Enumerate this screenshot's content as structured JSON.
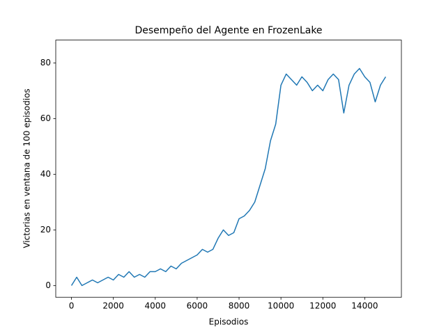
{
  "chart_data": {
    "type": "line",
    "title": "Desempeño del Agente en FrozenLake",
    "x_label": "Episodios",
    "y_label": "Victorias en ventana de 100 episodios",
    "x": [
      0,
      250,
      500,
      750,
      1000,
      1250,
      1500,
      1750,
      2000,
      2250,
      2500,
      2750,
      3000,
      3250,
      3500,
      3750,
      4000,
      4250,
      4500,
      4750,
      5000,
      5250,
      5500,
      5750,
      6000,
      6250,
      6500,
      6750,
      7000,
      7250,
      7500,
      7750,
      8000,
      8250,
      8500,
      8750,
      9000,
      9250,
      9500,
      9750,
      10000,
      10250,
      10500,
      10750,
      11000,
      11250,
      11500,
      11750,
      12000,
      12250,
      12500,
      12750,
      13000,
      13250,
      13500,
      13750,
      14000,
      14250,
      14500,
      14750,
      15000
    ],
    "series": [
      {
        "color": "#1f77b4",
        "values": [
          0,
          3,
          0,
          1,
          2,
          1,
          2,
          3,
          2,
          4,
          3,
          5,
          3,
          4,
          3,
          5,
          5,
          6,
          5,
          7,
          6,
          8,
          9,
          10,
          11,
          13,
          12,
          13,
          17,
          20,
          18,
          19,
          24,
          25,
          27,
          30,
          36,
          42,
          52,
          58,
          72,
          76,
          74,
          72,
          75,
          73,
          70,
          72,
          70,
          74,
          76,
          74,
          62,
          72,
          76,
          78,
          75,
          73,
          66,
          72,
          75
        ]
      }
    ],
    "xlim": [
      -750,
      15750
    ],
    "xticks": [
      0,
      2000,
      4000,
      6000,
      8000,
      10000,
      12000,
      14000
    ],
    "ylim": [
      -4.2,
      88.2
    ],
    "yticks": [
      0,
      20,
      40,
      60,
      80
    ],
    "grid": false
  }
}
